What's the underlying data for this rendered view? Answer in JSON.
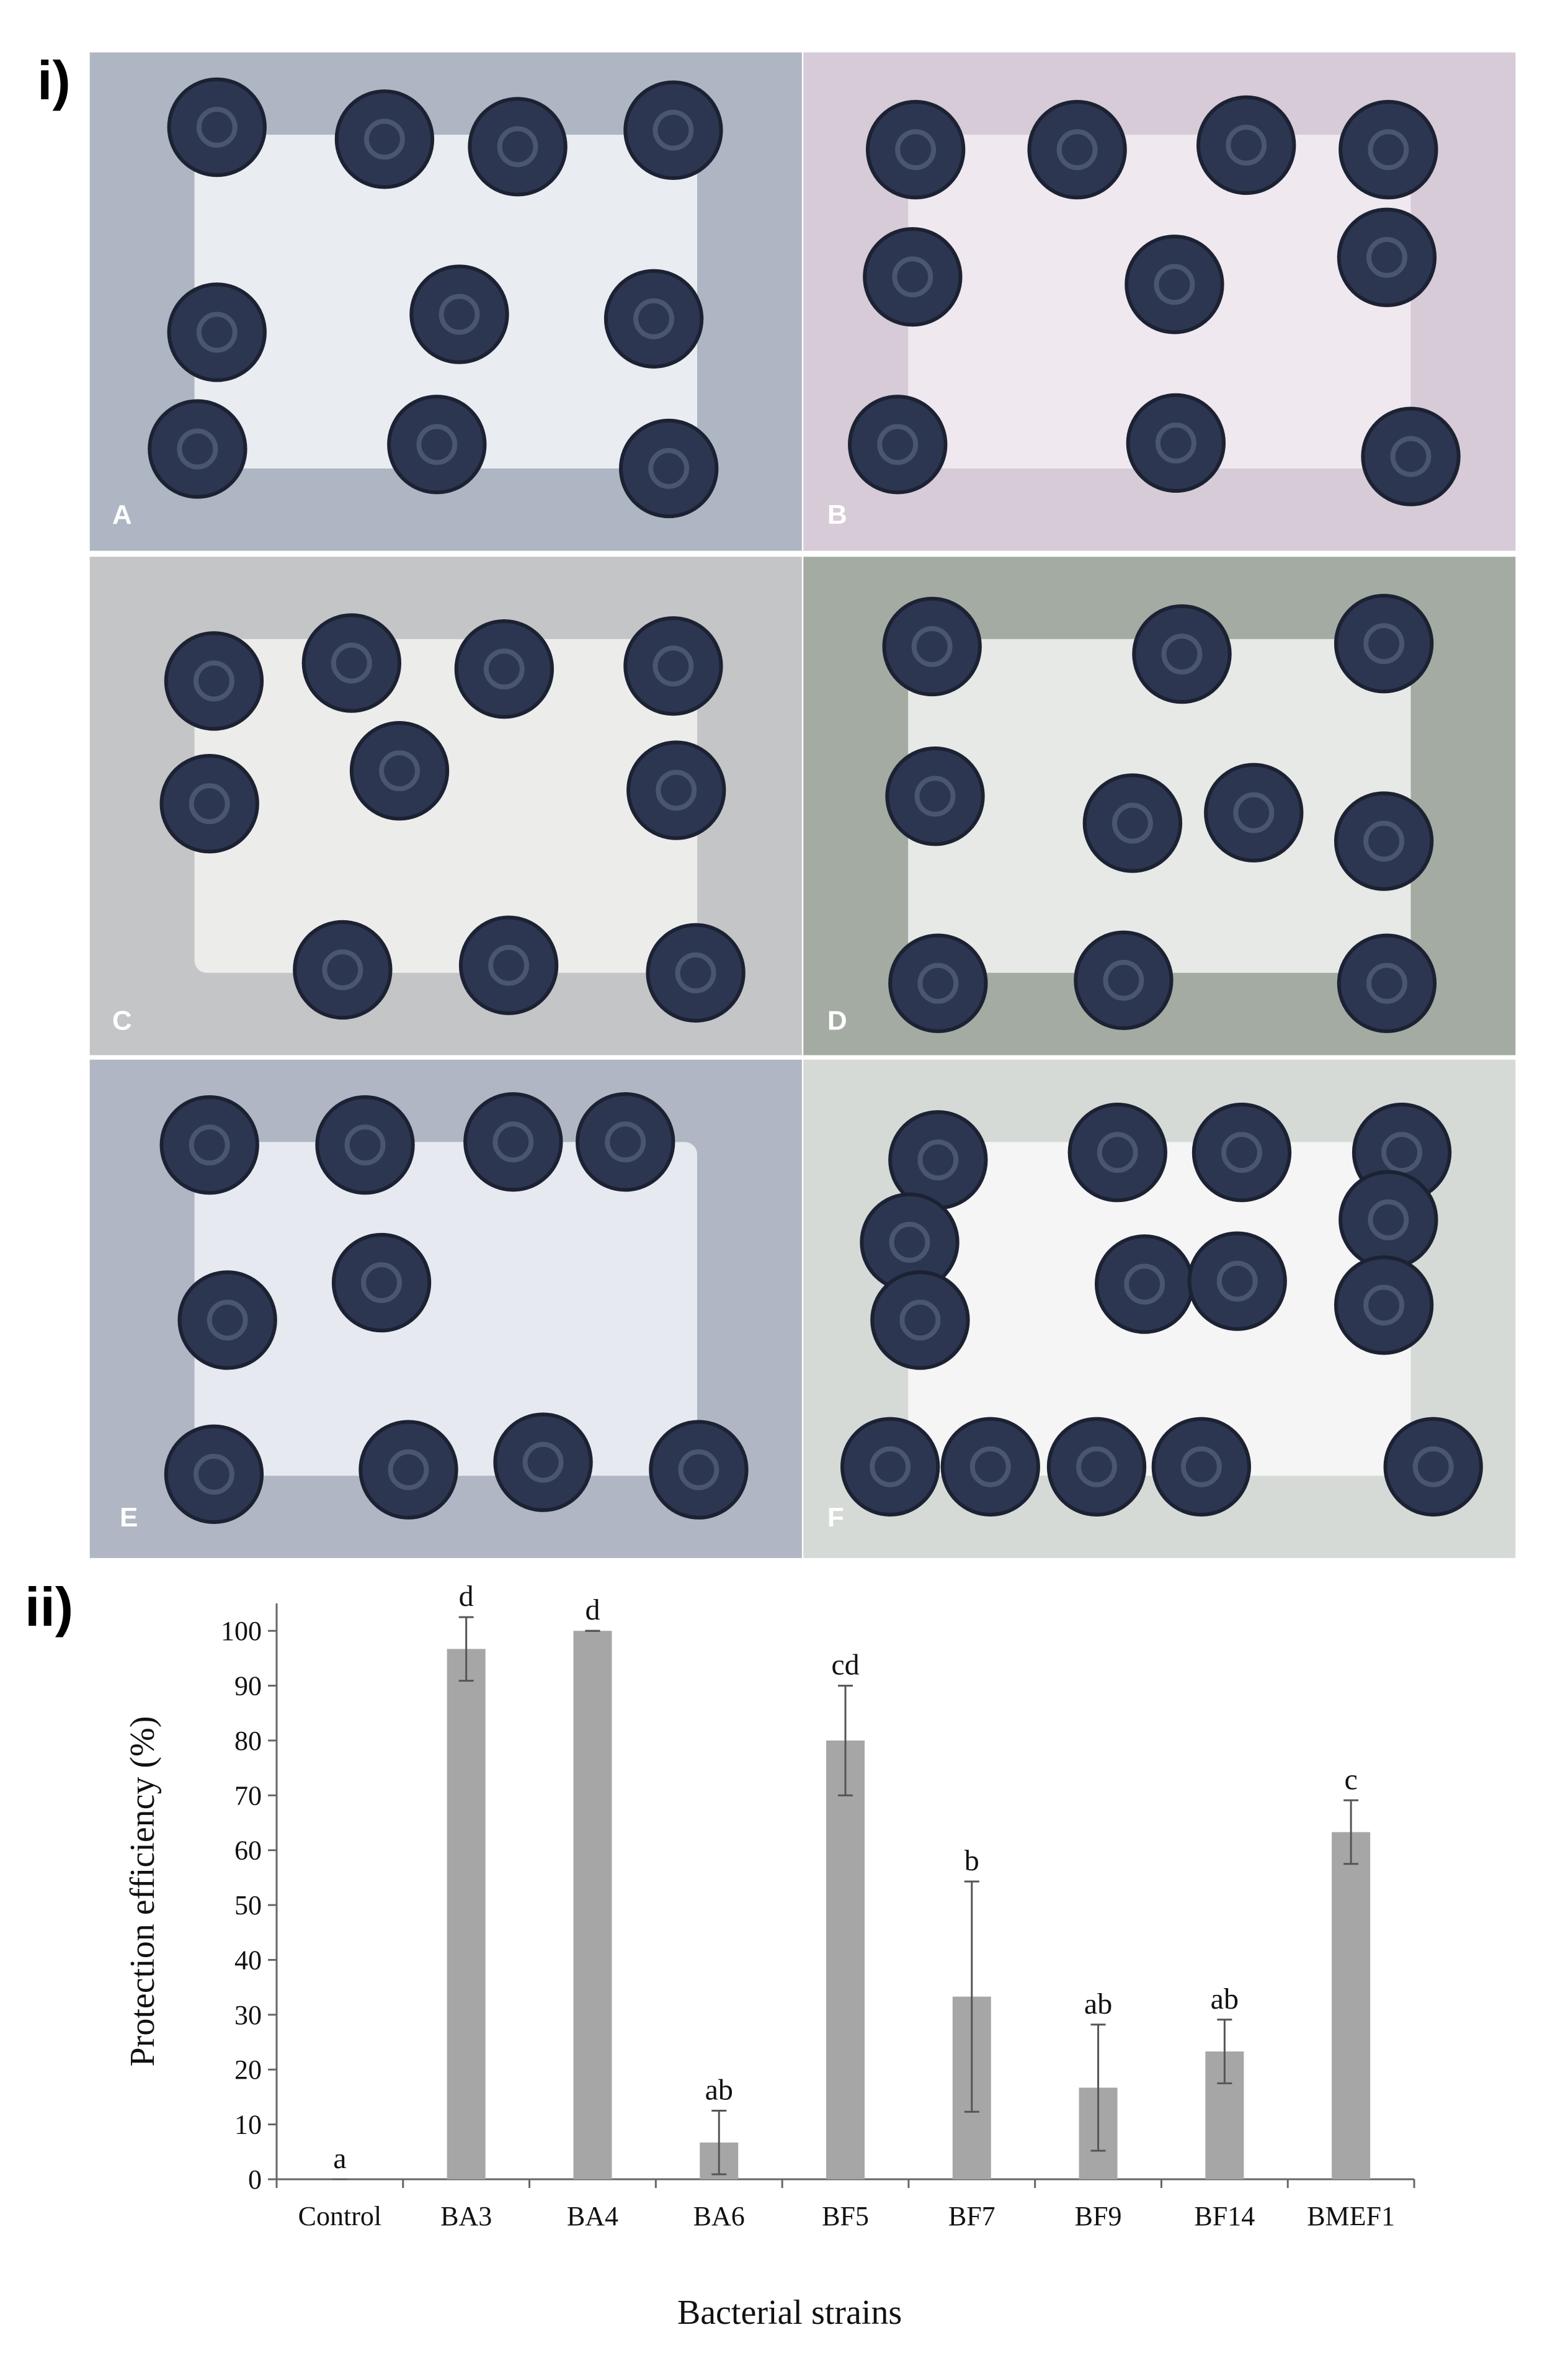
{
  "panel_labels": [
    "i)",
    "ii)"
  ],
  "photo_labels": [
    "A",
    "B",
    "C",
    "D",
    "E",
    "F"
  ],
  "chart_data": {
    "type": "bar",
    "xlabel": "Bacterial strains",
    "ylabel": "Protection efficiency (%)",
    "categories": [
      "Control",
      "BA3",
      "BA4",
      "BA6",
      "BF5",
      "BF7",
      "BF9",
      "BF14",
      "BMEF1"
    ],
    "values": [
      0,
      96.7,
      100,
      6.7,
      80,
      33.3,
      16.7,
      23.3,
      63.3
    ],
    "errors": [
      0,
      5.8,
      0,
      5.8,
      10,
      21,
      11.5,
      5.8,
      5.8
    ],
    "annotations": [
      "a",
      "d",
      "d",
      "ab",
      "cd",
      "b",
      "ab",
      "ab",
      "c"
    ],
    "color": "#a6a6a6",
    "ylim": [
      0,
      105
    ],
    "yticks": [
      0,
      10,
      20,
      30,
      40,
      50,
      60,
      70,
      80,
      90,
      100
    ]
  }
}
